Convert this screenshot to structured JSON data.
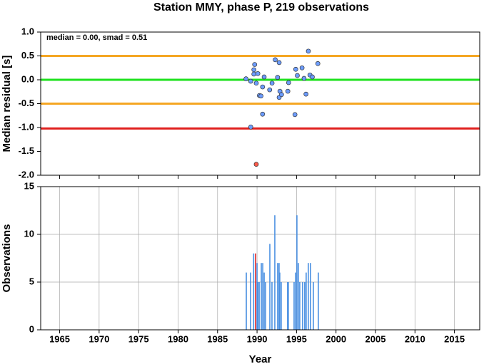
{
  "chart_data": [
    {
      "type": "scatter",
      "title": "Station MMY, phase P, 219 observations",
      "ylabel": "Median residual [s]",
      "annotation": "median = 0.00, smad = 0.51",
      "xlim": [
        1962.6,
        2018.2
      ],
      "xticks": [
        1965,
        1970,
        1975,
        1980,
        1985,
        1990,
        1995,
        2000,
        2005,
        2010,
        2015
      ],
      "ylim": [
        -2,
        1
      ],
      "yticks": [
        {
          "value": -2,
          "label": "-2.0"
        },
        -1.5,
        {
          "value": -1,
          "label": "-1.0"
        },
        -0.5,
        {
          "value": 0,
          "label": "0.0"
        },
        0.5,
        {
          "value": 1,
          "label": "1.0"
        }
      ],
      "hlines": [
        {
          "value": 0.5,
          "color": "#f5a623"
        },
        {
          "value": -0.5,
          "color": "#f5a623"
        },
        {
          "value": 0,
          "color": "#1ee21e"
        },
        {
          "value": -1.02,
          "color": "#e0201e"
        }
      ],
      "grid": false,
      "series": [
        {
          "color": "#6c9cff",
          "x": [
            1988.6,
            1989.2,
            1989.6,
            1989.7,
            1989.6,
            1990.1,
            1989.9,
            1990.3,
            1990.5,
            1990.7,
            1990.9,
            1990.7,
            1989.2,
            1991.6,
            1991.9,
            1992.3,
            1992.8,
            1992.6,
            1992.9,
            1992.8,
            1993.1,
            1993.9,
            1994.0,
            1994.9,
            1995.1,
            1994.8,
            1995.7,
            1995.95,
            1996.5,
            1996.2,
            1996.7,
            1997.0,
            1997.7
          ],
          "values": [
            0.02,
            -0.03,
            0.21,
            0.32,
            0.12,
            0.13,
            -0.07,
            -0.33,
            -0.34,
            -0.15,
            0.06,
            -0.72,
            -0.99,
            -0.21,
            -0.07,
            0.42,
            0.36,
            0.05,
            -0.24,
            -0.37,
            -0.31,
            -0.24,
            -0.06,
            0.22,
            0.09,
            -0.73,
            0.25,
            0.03,
            0.6,
            -0.3,
            0.1,
            0.06,
            0.34
          ]
        },
        {
          "color": "#ff5a4a",
          "x": [
            1989.9
          ],
          "values": [
            -1.77
          ]
        }
      ]
    },
    {
      "type": "bar",
      "xlabel": "Year",
      "ylabel": "Observations",
      "xlim": [
        1962.6,
        2018.2
      ],
      "xticks": [
        1965,
        1970,
        1975,
        1980,
        1985,
        1990,
        1995,
        2000,
        2005,
        2010,
        2015
      ],
      "ylim": [
        0,
        15
      ],
      "yticks": [
        0,
        5,
        10,
        15
      ],
      "grid": true,
      "series": [
        {
          "color": "#4a90e2",
          "x": [
            1988.64,
            1989.18,
            1989.57,
            1990.0,
            1990.1,
            1990.27,
            1990.54,
            1990.72,
            1990.9,
            1991.08,
            1991.62,
            1991.89,
            1992.25,
            1992.61,
            1992.79,
            1992.88,
            1993.06,
            1993.87,
            1993.96,
            1994.69,
            1994.87,
            1995.05,
            1995.23,
            1995.41,
            1995.77,
            1996.04,
            1996.22,
            1996.49,
            1996.76,
            1997.13,
            1997.76
          ],
          "values": [
            6,
            6,
            8,
            7,
            5,
            5,
            7,
            7,
            6,
            5,
            9,
            5,
            12,
            7,
            7,
            6,
            5,
            5,
            5,
            5,
            6,
            12,
            7,
            5,
            5,
            5,
            6,
            7,
            7,
            5,
            6
          ]
        },
        {
          "color": "#e0201e",
          "x": [
            1989.82
          ],
          "values": [
            8
          ]
        }
      ]
    }
  ]
}
